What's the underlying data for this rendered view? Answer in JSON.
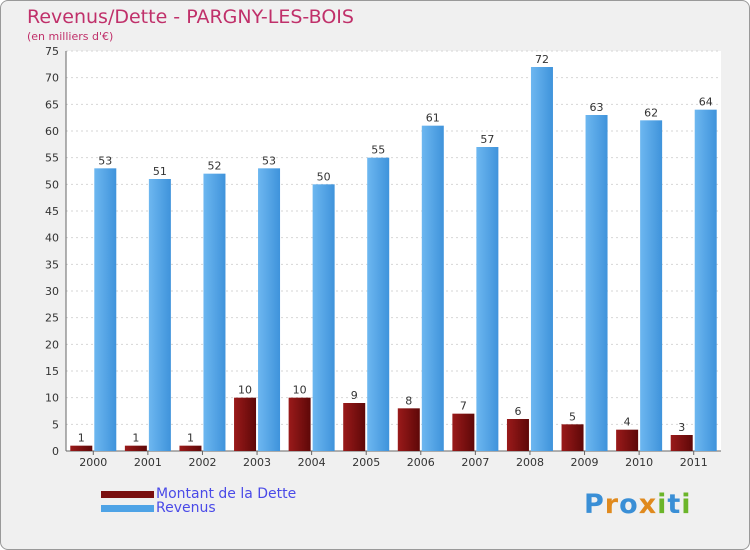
{
  "chart_data": {
    "type": "bar",
    "title": "Revenus/Dette - PARGNY-LES-BOIS",
    "subtitle": "(en milliers d'€)",
    "categories": [
      "2000",
      "2001",
      "2002",
      "2003",
      "2004",
      "2005",
      "2006",
      "2007",
      "2008",
      "2009",
      "2010",
      "2011"
    ],
    "series": [
      {
        "name": "Montant de la Dette",
        "values": [
          1,
          1,
          1,
          10,
          10,
          9,
          8,
          7,
          6,
          5,
          4,
          3
        ],
        "color": "#7a0f0f"
      },
      {
        "name": "Revenus",
        "values": [
          53,
          51,
          52,
          53,
          50,
          55,
          61,
          57,
          72,
          63,
          62,
          64
        ],
        "color": "#4ea3e6"
      }
    ],
    "ylim": [
      0,
      75
    ],
    "yticks": [
      0,
      5,
      10,
      15,
      20,
      25,
      30,
      35,
      40,
      45,
      50,
      55,
      60,
      65,
      70,
      75
    ],
    "grid": true,
    "legend_position": "bottom-left"
  },
  "logo": {
    "letters": [
      {
        "ch": "P",
        "color": "#3a8fd6"
      },
      {
        "ch": "r",
        "color": "#e08a1e"
      },
      {
        "ch": "o",
        "color": "#3a8fd6"
      },
      {
        "ch": "x",
        "color": "#e08a1e"
      },
      {
        "ch": "i",
        "color": "#6bb52a"
      },
      {
        "ch": "t",
        "color": "#3a8fd6"
      },
      {
        "ch": "i",
        "color": "#6bb52a"
      }
    ]
  }
}
